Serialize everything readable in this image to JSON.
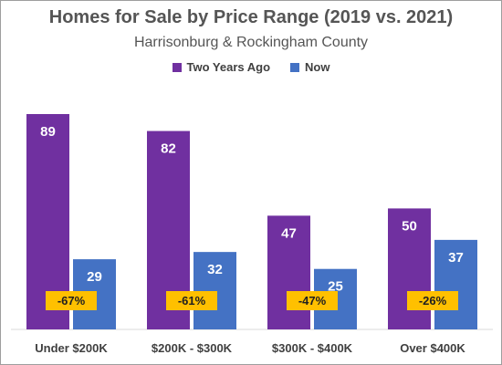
{
  "chart_data": {
    "type": "bar",
    "title": "Homes for Sale by Price Range (2019 vs. 2021)",
    "subtitle": "Harrisonburg & Rockingham County",
    "categories": [
      "Under $200K",
      "$200K - $300K",
      "$300K - $400K",
      "Over $400K"
    ],
    "series": [
      {
        "name": "Two Years Ago",
        "values": [
          89,
          82,
          47,
          50
        ],
        "color": "#7030a0"
      },
      {
        "name": "Now",
        "values": [
          29,
          32,
          25,
          37
        ],
        "color": "#4472c4"
      }
    ],
    "annotations": [
      "-67%",
      "-61%",
      "-47%",
      "-26%"
    ],
    "annotation_color": "#ffc000",
    "ylim": [
      0,
      89
    ],
    "grid": false,
    "legend_position": "top"
  }
}
